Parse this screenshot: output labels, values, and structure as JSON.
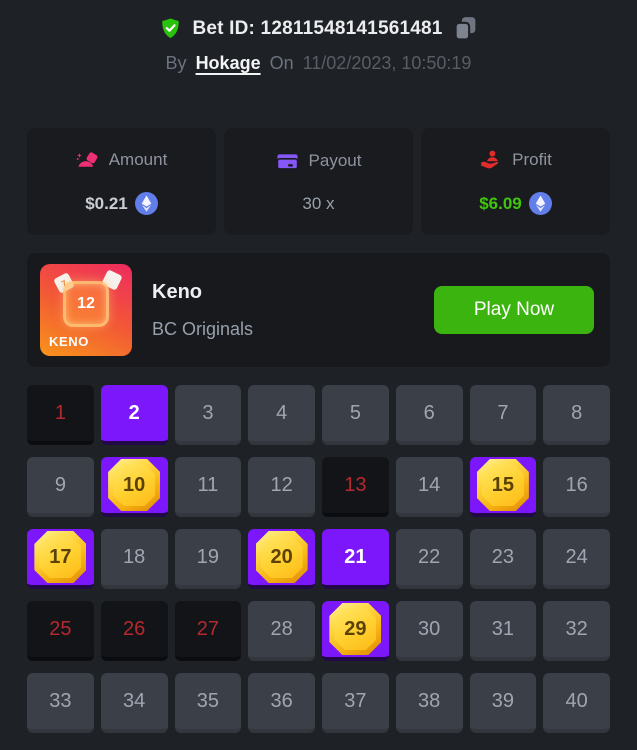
{
  "header": {
    "bet_id": "Bet ID: 12811548141561481",
    "by_label": "By",
    "username": "Hokage",
    "on_label": "On",
    "datetime": "11/02/2023, 10:50:19"
  },
  "stats": [
    {
      "label": "Amount",
      "value": "$0.21",
      "icon": "money-icon",
      "coin": "ethereum"
    },
    {
      "label": "Payout",
      "value": "30 x",
      "icon": "wallet-icon",
      "coin": null
    },
    {
      "label": "Profit",
      "value": "$6.09",
      "icon": "hand-profit-icon",
      "coin": "ethereum"
    }
  ],
  "game": {
    "title": "Keno",
    "provider": "BC Originals",
    "play_button": "Play Now",
    "art": {
      "number": "12",
      "label": "KENO"
    }
  },
  "keno": {
    "total": 40,
    "drawn_misses": [
      1,
      13,
      25,
      26,
      27
    ],
    "picked": [
      2,
      21
    ],
    "hits": [
      10,
      15,
      17,
      20,
      29
    ]
  },
  "colors": {
    "page_bg": "#1e2125",
    "card_bg": "#191b1f",
    "tile_default": "#3b3f47",
    "tile_miss": "#131418",
    "tile_purple": "#7c17fb",
    "miss_red": "#b5292e",
    "profit_green": "#3fc60d",
    "button_green": "#3cb40f",
    "shield_green": "#2bc20e",
    "amount_pink": "#ee2f72",
    "payout_purple": "#8657f8",
    "profit_icon_red": "#e22c2c",
    "eth_blue": "#627eea",
    "gem_gold": "#ffd02f"
  }
}
